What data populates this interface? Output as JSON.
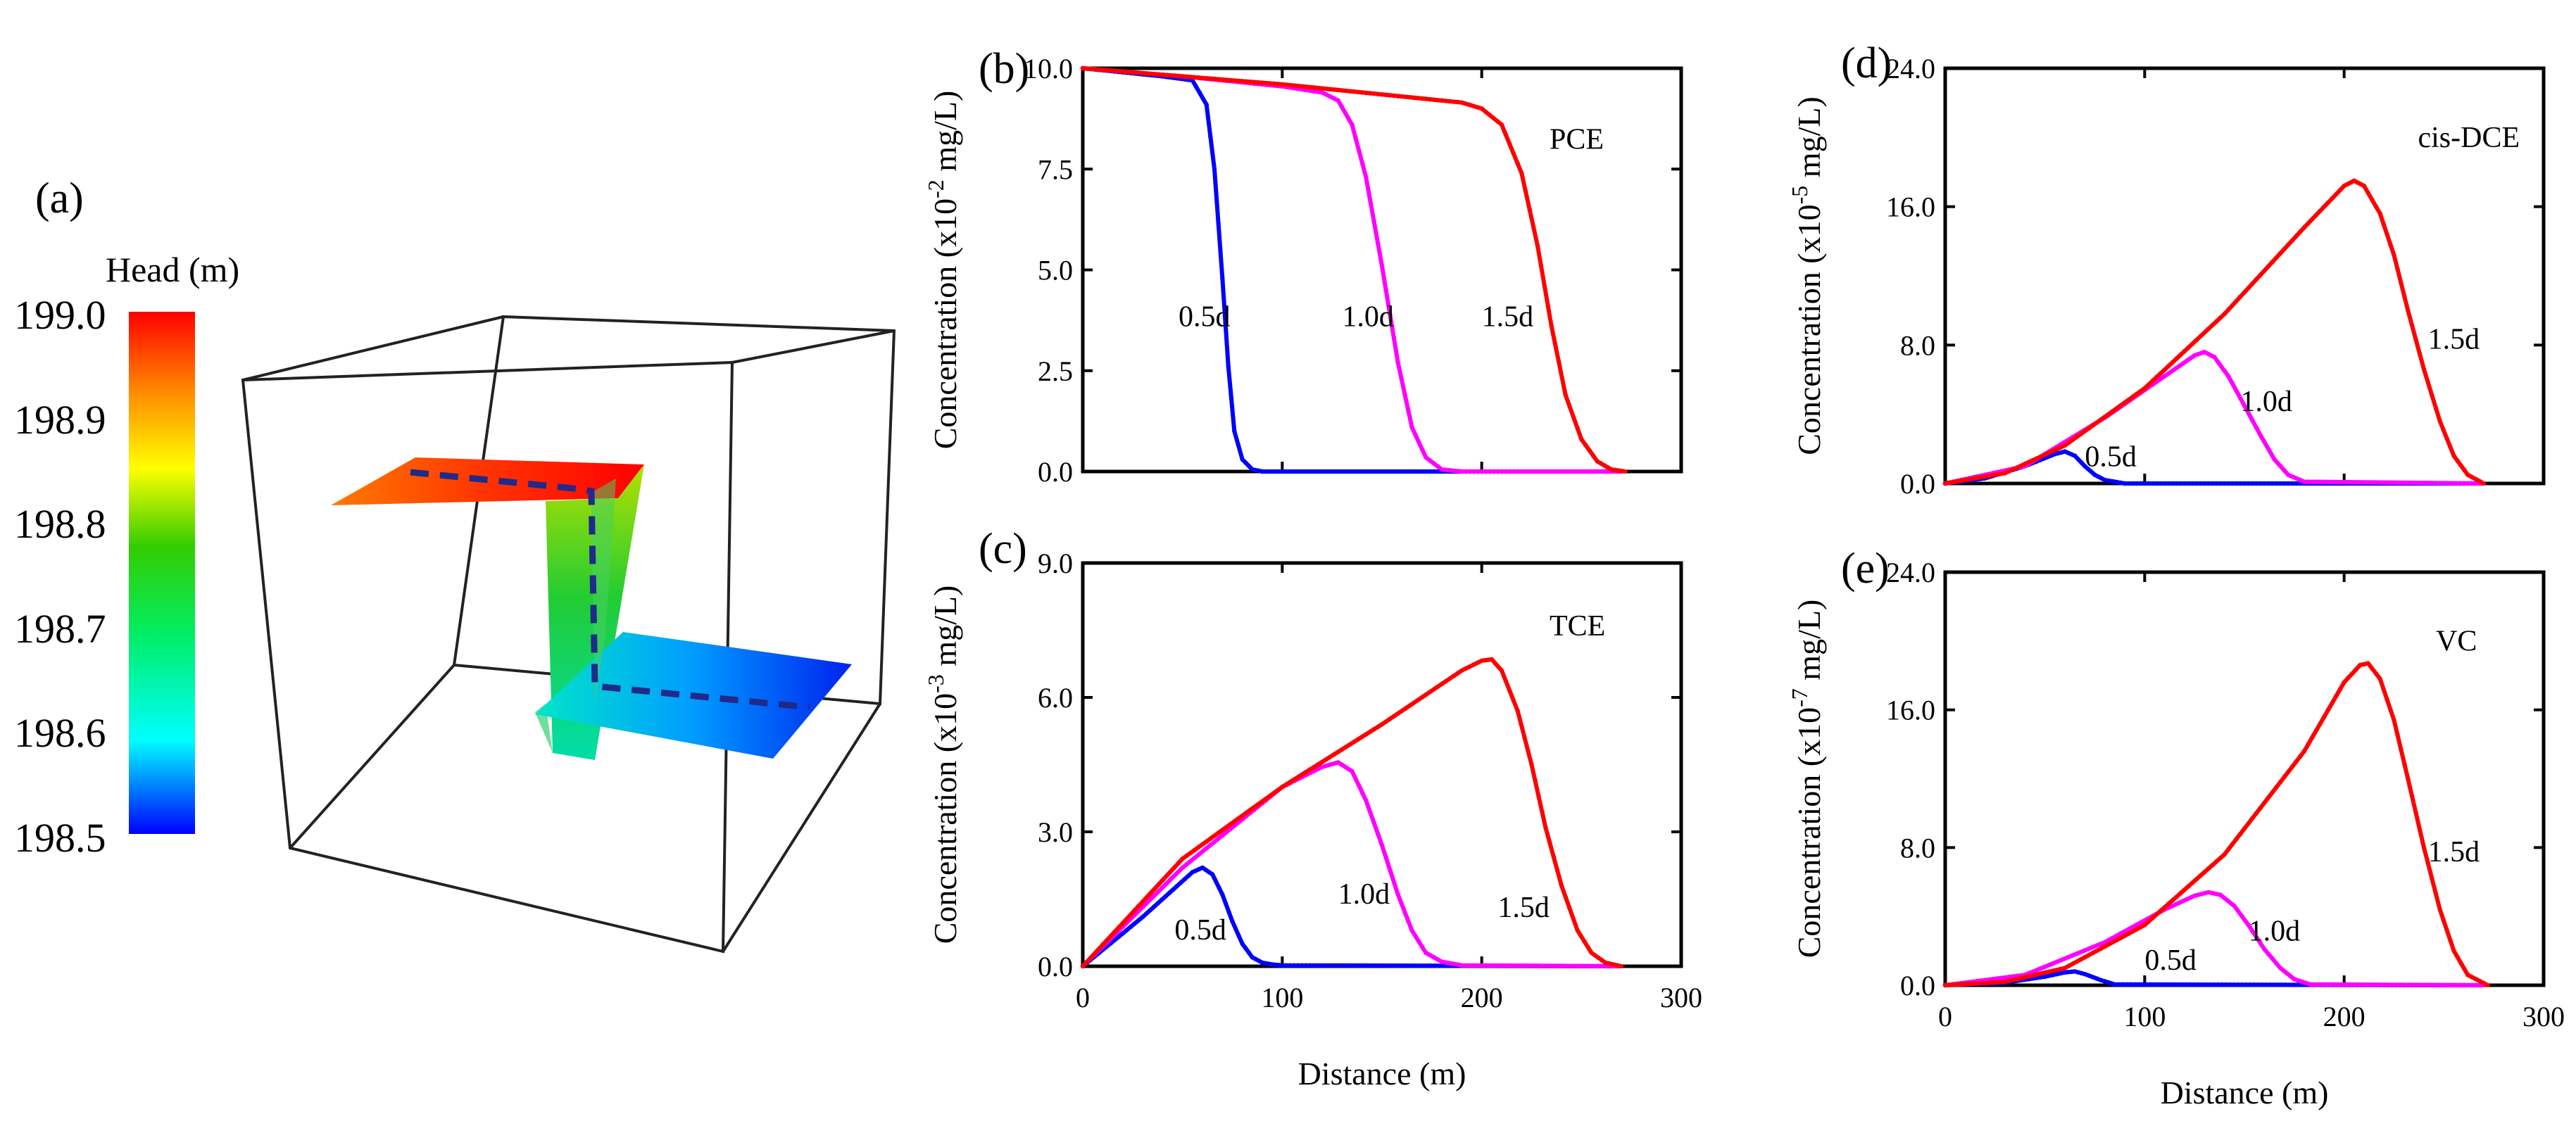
{
  "panel_a": {
    "label": "(a)",
    "colorbar": {
      "title": "Head (m)",
      "ticks": [
        "199.0",
        "198.9",
        "198.8",
        "198.7",
        "198.6",
        "198.5"
      ],
      "min": 198.5,
      "max": 199.0,
      "colors": [
        "#0000ff",
        "#00ffff",
        "#00ff66",
        "#33cc00",
        "#ffff00",
        "#ff8800",
        "#ff0000"
      ]
    },
    "path_color": "#1f2a8a"
  },
  "chart_data": [
    {
      "id": "b",
      "label": "(b)",
      "type": "line",
      "species": "PCE",
      "ylabel_main": "Concentration (x10",
      "ylabel_exp": "-2",
      "ylabel_unit": " mg/L)",
      "xlabel": "",
      "xlim": [
        0,
        300
      ],
      "ylim": [
        0,
        10
      ],
      "yticks": [
        "0.0",
        "2.5",
        "5.0",
        "7.5",
        "10.0"
      ],
      "xticks": [],
      "series": [
        {
          "name": "0.5d",
          "color": "#0000ff",
          "x": [
            0,
            20,
            40,
            55,
            62,
            66,
            70,
            73,
            76,
            80,
            85,
            90,
            100,
            270
          ],
          "y": [
            10,
            9.9,
            9.8,
            9.7,
            9.1,
            7.5,
            4.8,
            2.6,
            1.0,
            0.3,
            0.05,
            0,
            0,
            0
          ]
        },
        {
          "name": "1.0d",
          "color": "#ff00ff",
          "x": [
            0,
            50,
            100,
            120,
            128,
            135,
            142,
            150,
            158,
            165,
            172,
            180,
            190,
            270
          ],
          "y": [
            10,
            9.8,
            9.55,
            9.4,
            9.2,
            8.6,
            7.3,
            5.1,
            2.7,
            1.1,
            0.35,
            0.05,
            0,
            0
          ]
        },
        {
          "name": "1.5d",
          "color": "#ff0000",
          "x": [
            0,
            50,
            100,
            150,
            190,
            200,
            210,
            220,
            228,
            235,
            242,
            250,
            258,
            265,
            272
          ],
          "y": [
            10,
            9.8,
            9.6,
            9.35,
            9.15,
            9.0,
            8.6,
            7.4,
            5.6,
            3.6,
            1.9,
            0.8,
            0.25,
            0.05,
            0
          ]
        }
      ],
      "annotations": [
        {
          "text": "0.5d",
          "x": 48,
          "y": 3.6
        },
        {
          "text": "1.0d",
          "x": 130,
          "y": 3.6
        },
        {
          "text": "1.5d",
          "x": 200,
          "y": 3.6
        }
      ]
    },
    {
      "id": "c",
      "label": "(c)",
      "type": "line",
      "species": "TCE",
      "ylabel_main": "Concentration (x10",
      "ylabel_exp": "-3",
      "ylabel_unit": " mg/L)",
      "xlabel": "Distance (m)",
      "xlim": [
        0,
        300
      ],
      "ylim": [
        0,
        9
      ],
      "yticks": [
        "0.0",
        "3.0",
        "6.0",
        "9.0"
      ],
      "xticks": [
        "0",
        "100",
        "200",
        "300"
      ],
      "series": [
        {
          "name": "0.5d",
          "color": "#0000ff",
          "x": [
            0,
            30,
            55,
            60,
            65,
            70,
            75,
            80,
            85,
            90,
            95,
            100,
            270
          ],
          "y": [
            0,
            1.1,
            2.1,
            2.2,
            2.05,
            1.6,
            1.0,
            0.5,
            0.2,
            0.08,
            0.04,
            0.02,
            0
          ]
        },
        {
          "name": "1.0d",
          "color": "#ff00ff",
          "x": [
            0,
            50,
            100,
            120,
            128,
            135,
            142,
            150,
            158,
            165,
            172,
            180,
            190,
            270
          ],
          "y": [
            0,
            2.2,
            4.0,
            4.45,
            4.55,
            4.35,
            3.7,
            2.7,
            1.6,
            0.8,
            0.3,
            0.1,
            0.02,
            0
          ]
        },
        {
          "name": "1.5d",
          "color": "#ff0000",
          "x": [
            0,
            50,
            100,
            150,
            190,
            200,
            205,
            210,
            218,
            225,
            232,
            240,
            248,
            255,
            262,
            270
          ],
          "y": [
            0,
            2.4,
            4.0,
            5.4,
            6.6,
            6.82,
            6.85,
            6.6,
            5.7,
            4.5,
            3.1,
            1.8,
            0.8,
            0.3,
            0.08,
            0
          ]
        }
      ],
      "annotations": [
        {
          "text": "0.5d",
          "x": 46,
          "y": 0.6
        },
        {
          "text": "1.0d",
          "x": 128,
          "y": 1.4
        },
        {
          "text": "1.5d",
          "x": 208,
          "y": 1.1
        }
      ]
    },
    {
      "id": "d",
      "label": "(d)",
      "type": "line",
      "species": "cis-DCE",
      "ylabel_main": "Concentration (x10",
      "ylabel_exp": "-5",
      "ylabel_unit": " mg/L)",
      "xlabel": "",
      "xlim": [
        0,
        300
      ],
      "ylim": [
        0,
        24
      ],
      "yticks": [
        "0.0",
        "8.0",
        "16.0",
        "24.0"
      ],
      "xticks": [],
      "series": [
        {
          "name": "0.5d",
          "color": "#0000ff",
          "x": [
            0,
            20,
            40,
            55,
            60,
            65,
            70,
            75,
            80,
            90,
            270
          ],
          "y": [
            0,
            0.3,
            1.0,
            1.7,
            1.85,
            1.6,
            1.0,
            0.5,
            0.2,
            0,
            0
          ]
        },
        {
          "name": "1.0d",
          "color": "#ff00ff",
          "x": [
            0,
            40,
            80,
            110,
            125,
            130,
            135,
            142,
            150,
            158,
            165,
            172,
            180,
            270
          ],
          "y": [
            0,
            1.0,
            3.8,
            6.2,
            7.4,
            7.6,
            7.3,
            6.2,
            4.5,
            2.8,
            1.4,
            0.5,
            0.1,
            0
          ]
        },
        {
          "name": "1.5d",
          "color": "#ff0000",
          "x": [
            0,
            30,
            60,
            100,
            140,
            180,
            200,
            205,
            210,
            218,
            225,
            232,
            240,
            248,
            255,
            262,
            270
          ],
          "y": [
            0,
            0.6,
            2.2,
            5.5,
            9.8,
            14.8,
            17.2,
            17.5,
            17.2,
            15.6,
            13.2,
            10.0,
            6.6,
            3.6,
            1.6,
            0.5,
            0
          ]
        }
      ],
      "annotations": [
        {
          "text": "0.5d",
          "x": 70,
          "y": 1.0
        },
        {
          "text": "1.0d",
          "x": 148,
          "y": 4.2
        },
        {
          "text": "1.5d",
          "x": 242,
          "y": 7.8
        }
      ]
    },
    {
      "id": "e",
      "label": "(e)",
      "type": "line",
      "species": "VC",
      "ylabel_main": "Concentration (x10",
      "ylabel_exp": "-7",
      "ylabel_unit": " mg/L)",
      "xlabel": "Distance (m)",
      "xlim": [
        0,
        300
      ],
      "ylim": [
        0,
        24
      ],
      "yticks": [
        "0.0",
        "8.0",
        "16.0",
        "24.0"
      ],
      "xticks": [
        "0",
        "100",
        "200",
        "300"
      ],
      "series": [
        {
          "name": "0.5d",
          "color": "#0000ff",
          "x": [
            0,
            30,
            50,
            60,
            65,
            70,
            78,
            85,
            270
          ],
          "y": [
            0,
            0.15,
            0.5,
            0.75,
            0.8,
            0.65,
            0.3,
            0.05,
            0
          ]
        },
        {
          "name": "1.0d",
          "color": "#ff00ff",
          "x": [
            0,
            40,
            80,
            110,
            125,
            132,
            138,
            145,
            152,
            160,
            168,
            175,
            183,
            270
          ],
          "y": [
            0,
            0.6,
            2.5,
            4.4,
            5.2,
            5.4,
            5.25,
            4.6,
            3.5,
            2.1,
            1.0,
            0.35,
            0.05,
            0
          ]
        },
        {
          "name": "1.5d",
          "color": "#ff0000",
          "x": [
            0,
            30,
            60,
            100,
            140,
            180,
            200,
            208,
            212,
            218,
            225,
            232,
            240,
            248,
            255,
            262,
            272
          ],
          "y": [
            0,
            0.2,
            1.0,
            3.5,
            7.6,
            13.6,
            17.6,
            18.6,
            18.7,
            17.8,
            15.4,
            12.0,
            8.0,
            4.4,
            2.0,
            0.6,
            0
          ]
        }
      ],
      "annotations": [
        {
          "text": "0.5d",
          "x": 100,
          "y": 0.9
        },
        {
          "text": "1.0d",
          "x": 152,
          "y": 2.6
        },
        {
          "text": "1.5d",
          "x": 242,
          "y": 7.2
        }
      ]
    }
  ]
}
